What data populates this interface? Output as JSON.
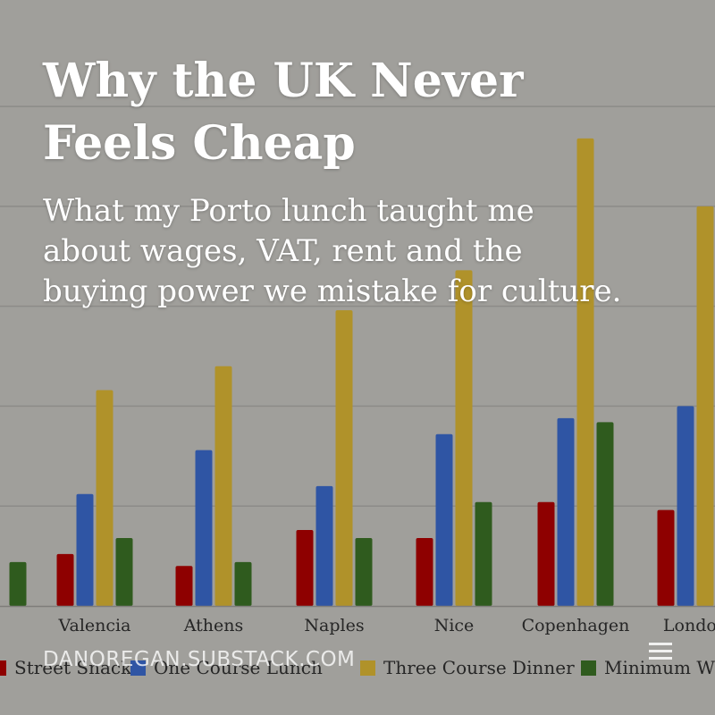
{
  "overlay": {
    "title_line1": "Why the UK Never",
    "title_line2": "Feels Cheap",
    "subtitle_line1": "What my Porto lunch taught me",
    "subtitle_line2": "about wages, VAT, rent and the",
    "subtitle_line3": "buying power we mistake for culture.",
    "brand": "DANOREGAN.SUBSTACK.COM",
    "menu_icon": "menu-icon"
  },
  "colors": {
    "background": "#a09f9b",
    "gridline": "#8c8b88",
    "street_snack": "#8e0000",
    "one_course_lunch": "#2f55a4",
    "three_course_dinner": "#b0922a",
    "minimum_wage": "#2f5b1e"
  },
  "chart_data": {
    "type": "bar",
    "categories": [
      "",
      "Valencia",
      "Athens",
      "Naples",
      "Nice",
      "Copenhagen",
      "London"
    ],
    "series": [
      {
        "name": "Street Snack",
        "color": "#8e0000",
        "values": [
          null,
          1.3,
          1.0,
          1.9,
          1.7,
          2.6,
          2.4
        ]
      },
      {
        "name": "One Course Lunch",
        "color": "#2f55a4",
        "values": [
          null,
          2.8,
          3.9,
          3.0,
          4.3,
          4.7,
          5.0
        ]
      },
      {
        "name": "Three Course Dinner",
        "color": "#b0922a",
        "values": [
          null,
          5.4,
          6.0,
          7.4,
          8.4,
          11.7,
          10.0
        ]
      },
      {
        "name": "Minimum W",
        "color": "#2f5b1e",
        "values": [
          1.1,
          1.7,
          1.1,
          1.7,
          2.6,
          4.6,
          null
        ]
      }
    ],
    "ylim": [
      0,
      14
    ],
    "y_gridlines": [
      2.5,
      5,
      7.5,
      10,
      12.5
    ],
    "grid": true,
    "legend": "bottom",
    "xlabel": "",
    "ylabel": ""
  }
}
